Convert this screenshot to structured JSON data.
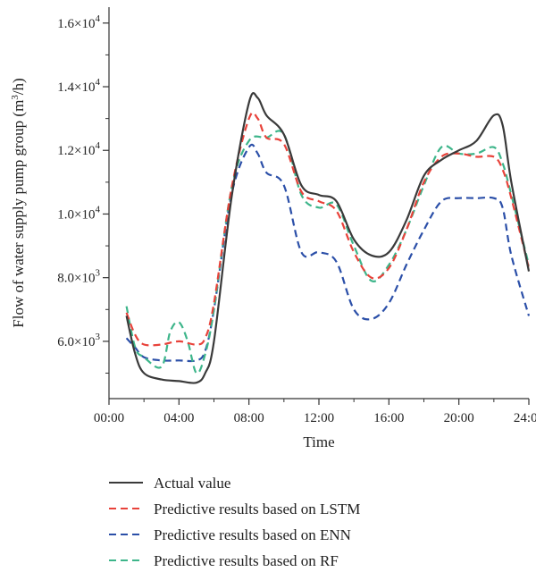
{
  "chart_data": {
    "type": "line",
    "xlabel": "Time",
    "ylabel": "Flow of water supply pump group (m³/h)",
    "ylabel_parts": {
      "prefix": "Flow of water supply pump group (m",
      "sup": "3",
      "suffix": "/h)"
    },
    "xlim": [
      0,
      24
    ],
    "ylim": [
      4200,
      16500
    ],
    "x_ticks": [
      {
        "value": 0,
        "label": "00:00"
      },
      {
        "value": 4,
        "label": "04:00"
      },
      {
        "value": 8,
        "label": "08:00"
      },
      {
        "value": 12,
        "label": "12:00"
      },
      {
        "value": 16,
        "label": "16:00"
      },
      {
        "value": 20,
        "label": "20:00"
      },
      {
        "value": 24,
        "label": "24:00"
      }
    ],
    "y_ticks": [
      {
        "value": 6000,
        "mantissa": "6.0×10",
        "exp": "3"
      },
      {
        "value": 8000,
        "mantissa": "8.0×10",
        "exp": "3"
      },
      {
        "value": 10000,
        "mantissa": "1.0×10",
        "exp": "4"
      },
      {
        "value": 12000,
        "mantissa": "1.2×10",
        "exp": "4"
      },
      {
        "value": 14000,
        "mantissa": "1.4×10",
        "exp": "4"
      },
      {
        "value": 16000,
        "mantissa": "1.6×10",
        "exp": "4"
      }
    ],
    "grid": false,
    "legend_placement": "bottom",
    "series": [
      {
        "name": "Actual value",
        "color": "#3a3a3a",
        "dash": "solid",
        "points": [
          [
            1,
            6800
          ],
          [
            1.5,
            5600
          ],
          [
            2,
            5000
          ],
          [
            3,
            4800
          ],
          [
            4,
            4750
          ],
          [
            5,
            4700
          ],
          [
            5.5,
            5000
          ],
          [
            6,
            6000
          ],
          [
            7,
            10500
          ],
          [
            8,
            13500
          ],
          [
            8.5,
            13650
          ],
          [
            9,
            13100
          ],
          [
            10,
            12500
          ],
          [
            11,
            10900
          ],
          [
            12,
            10600
          ],
          [
            13,
            10400
          ],
          [
            14,
            9200
          ],
          [
            15,
            8700
          ],
          [
            16,
            8800
          ],
          [
            17,
            9800
          ],
          [
            18,
            11200
          ],
          [
            19,
            11700
          ],
          [
            20,
            12000
          ],
          [
            21,
            12300
          ],
          [
            22,
            13100
          ],
          [
            22.5,
            12800
          ],
          [
            23,
            11000
          ],
          [
            24,
            8200
          ]
        ]
      },
      {
        "name": "Predictive results based on LSTM",
        "color": "#e8423a",
        "dash": "dashed",
        "points": [
          [
            1,
            6900
          ],
          [
            1.5,
            6200
          ],
          [
            2,
            5900
          ],
          [
            3,
            5900
          ],
          [
            4,
            6000
          ],
          [
            5,
            5900
          ],
          [
            5.5,
            6100
          ],
          [
            6,
            7200
          ],
          [
            7,
            10800
          ],
          [
            8,
            13000
          ],
          [
            8.5,
            13000
          ],
          [
            9,
            12400
          ],
          [
            10,
            12200
          ],
          [
            11,
            10700
          ],
          [
            12,
            10400
          ],
          [
            13,
            10100
          ],
          [
            14,
            8800
          ],
          [
            15,
            8000
          ],
          [
            16,
            8300
          ],
          [
            17,
            9500
          ],
          [
            18,
            11000
          ],
          [
            19,
            11800
          ],
          [
            20,
            11900
          ],
          [
            21,
            11800
          ],
          [
            22,
            11800
          ],
          [
            22.5,
            11400
          ],
          [
            23,
            10500
          ],
          [
            24,
            8300
          ]
        ]
      },
      {
        "name": "Predictive results based on ENN",
        "color": "#2b4fa8",
        "dash": "dashed",
        "points": [
          [
            1,
            6100
          ],
          [
            1.5,
            5800
          ],
          [
            2,
            5500
          ],
          [
            3,
            5400
          ],
          [
            4,
            5400
          ],
          [
            5,
            5400
          ],
          [
            5.5,
            5700
          ],
          [
            6,
            7000
          ],
          [
            7,
            10600
          ],
          [
            8,
            12100
          ],
          [
            8.5,
            11900
          ],
          [
            9,
            11300
          ],
          [
            10,
            10900
          ],
          [
            11,
            8800
          ],
          [
            12,
            8800
          ],
          [
            13,
            8500
          ],
          [
            14,
            7000
          ],
          [
            15,
            6700
          ],
          [
            16,
            7200
          ],
          [
            17,
            8400
          ],
          [
            18,
            9500
          ],
          [
            19,
            10400
          ],
          [
            20,
            10500
          ],
          [
            21,
            10500
          ],
          [
            22,
            10500
          ],
          [
            22.5,
            10200
          ],
          [
            23,
            8700
          ],
          [
            24,
            6800
          ]
        ]
      },
      {
        "name": "Predictive results based on RF",
        "color": "#3db58a",
        "dash": "dashed",
        "points": [
          [
            1,
            7100
          ],
          [
            1.5,
            5800
          ],
          [
            2,
            5500
          ],
          [
            3,
            5200
          ],
          [
            3.5,
            6300
          ],
          [
            4,
            6600
          ],
          [
            4.5,
            6000
          ],
          [
            5,
            5000
          ],
          [
            5.5,
            5600
          ],
          [
            6,
            7000
          ],
          [
            7,
            10800
          ],
          [
            8,
            12300
          ],
          [
            9,
            12400
          ],
          [
            10,
            12500
          ],
          [
            11,
            10600
          ],
          [
            12,
            10200
          ],
          [
            13,
            10300
          ],
          [
            14,
            9000
          ],
          [
            15,
            7900
          ],
          [
            16,
            8400
          ],
          [
            17,
            9500
          ],
          [
            18,
            10900
          ],
          [
            19,
            12100
          ],
          [
            20,
            11900
          ],
          [
            21,
            11900
          ],
          [
            22,
            12100
          ],
          [
            22.5,
            11600
          ],
          [
            23,
            10600
          ],
          [
            24,
            8400
          ]
        ]
      }
    ]
  }
}
